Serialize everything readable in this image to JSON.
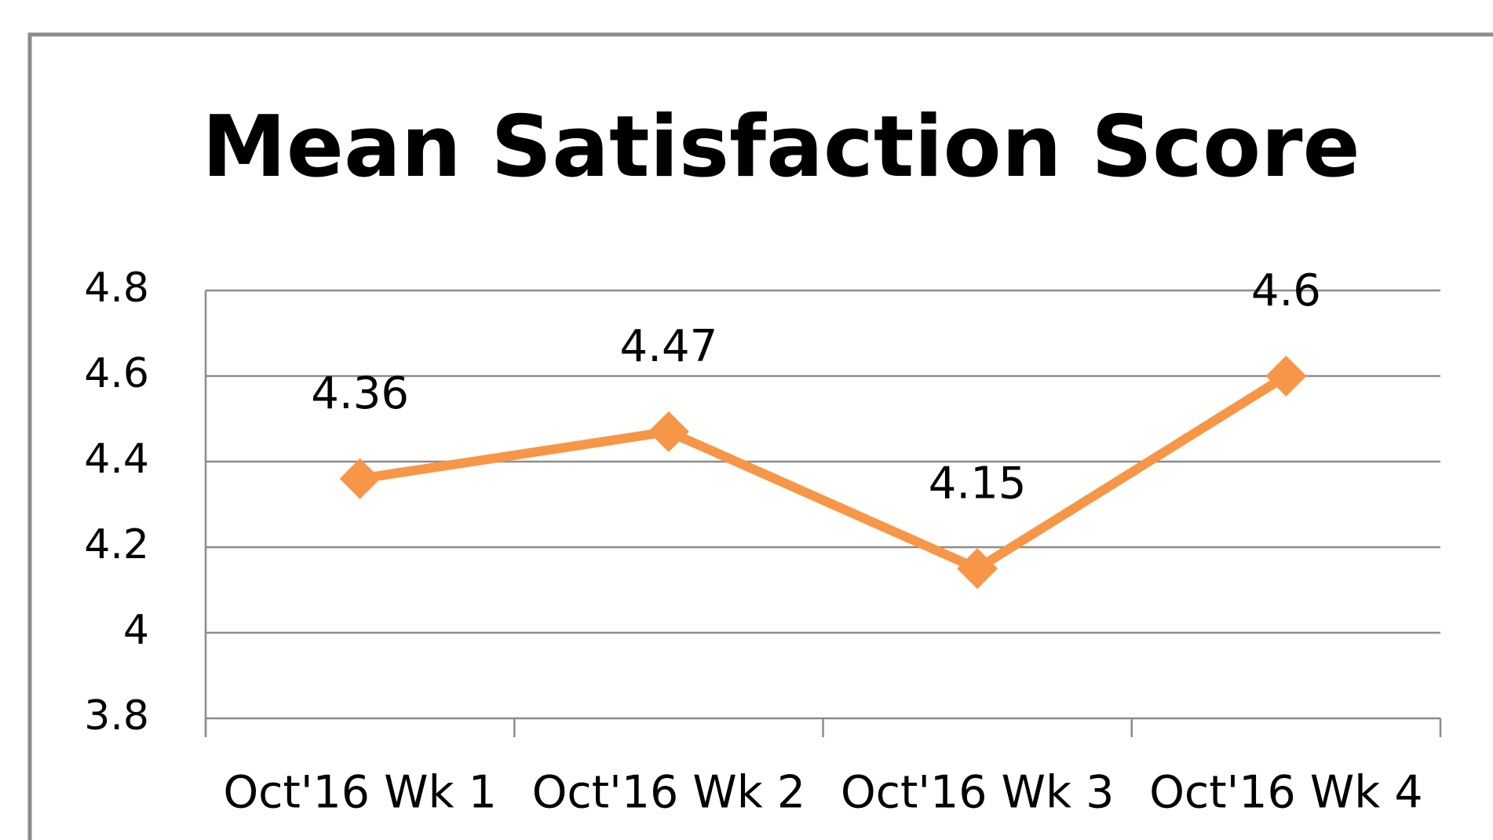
{
  "chart_data": {
    "type": "line",
    "title": "Mean Satisfaction Score",
    "categories": [
      "Oct'16 Wk 1",
      "Oct'16 Wk 2",
      "Oct'16 Wk 3",
      "Oct'16 Wk 4"
    ],
    "values": [
      4.36,
      4.47,
      4.15,
      4.6
    ],
    "color": "#f79646",
    "ylim": [
      3.8,
      4.8
    ],
    "yticks": [
      3.8,
      4,
      4.2,
      4.4,
      4.6,
      4.8
    ],
    "grid": true
  }
}
